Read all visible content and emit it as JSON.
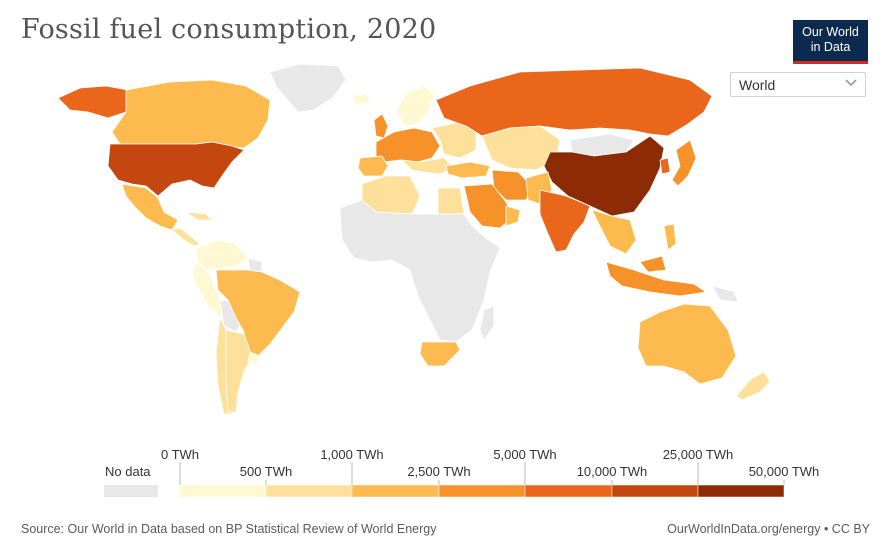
{
  "title": "Fossil fuel consumption, 2020",
  "logo": {
    "line1": "Our World",
    "line2": "in Data"
  },
  "region_selector": {
    "value": "World"
  },
  "legend": {
    "no_data": "No data",
    "no_data_color": "#e8e8e8",
    "bins": [
      {
        "color": "#fef9d2"
      },
      {
        "color": "#fde19a"
      },
      {
        "color": "#fdbb4f"
      },
      {
        "color": "#f7922b"
      },
      {
        "color": "#e9661b"
      },
      {
        "color": "#c44710"
      },
      {
        "color": "#8c2b05"
      }
    ],
    "upper_ticks": [
      "0 TWh",
      "1,000 TWh",
      "5,000 TWh",
      "25,000 TWh"
    ],
    "lower_ticks": [
      "500 TWh",
      "2,500 TWh",
      "10,000 TWh",
      "50,000 TWh"
    ]
  },
  "footer": {
    "source": "Source: Our World in Data based on BP Statistical Review of World Energy",
    "link": "OurWorldInData.org/energy • CC BY"
  }
}
